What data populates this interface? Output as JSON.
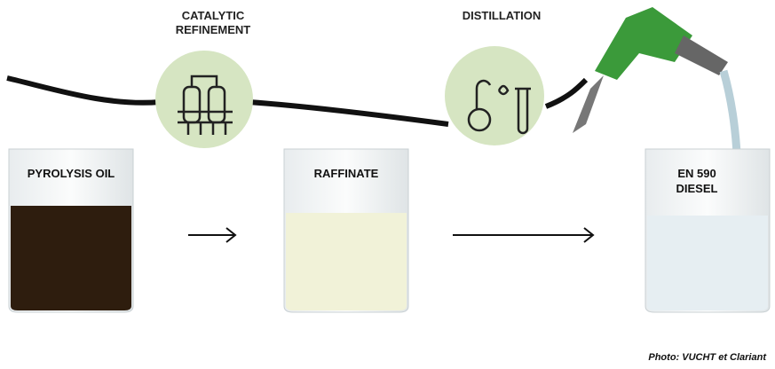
{
  "steps": [
    {
      "label": "CATALYTIC REFINEMENT"
    },
    {
      "label": "DISTILLATION"
    }
  ],
  "beakers": [
    {
      "label": "PYROLYSIS OIL"
    },
    {
      "label": "RAFFINATE"
    },
    {
      "label": "EN 590 DIESEL"
    }
  ],
  "credit": "Photo: VUCHT et Clariant"
}
